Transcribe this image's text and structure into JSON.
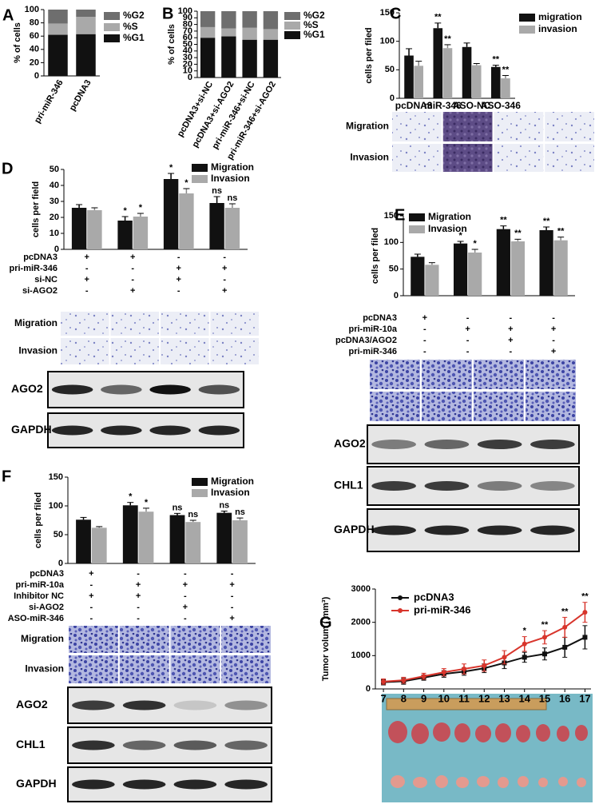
{
  "chart_data": [
    {
      "panel": "A",
      "type": "stacked_bar",
      "ylabel": "% of cells",
      "categories": [
        "pri-miR-346",
        "pcDNA3"
      ],
      "series": [
        {
          "name": "%G1",
          "color": "#111111",
          "values": [
            62,
            63
          ]
        },
        {
          "name": "%S",
          "color": "#a9a9a9",
          "values": [
            17,
            26
          ]
        },
        {
          "name": "%G2",
          "color": "#6e6e6e",
          "values": [
            21,
            11
          ]
        }
      ],
      "ylim": [
        0,
        100
      ],
      "yticks": [
        0,
        20,
        40,
        60,
        80,
        100
      ]
    },
    {
      "panel": "B",
      "type": "stacked_bar",
      "ylabel": "% of cells",
      "categories": [
        "pcDNA3+si-NC",
        "pcDNA3+si-AGO2",
        "pri-miR-346+si-NC",
        "pri-miR-346+si-AGO2"
      ],
      "series": [
        {
          "name": "%G1",
          "color": "#111111",
          "values": [
            60,
            62,
            57,
            57
          ]
        },
        {
          "name": "%S",
          "color": "#a9a9a9",
          "values": [
            16,
            12,
            18,
            16
          ]
        },
        {
          "name": "%G2",
          "color": "#6e6e6e",
          "values": [
            24,
            26,
            25,
            27
          ]
        }
      ],
      "ylim": [
        0,
        100
      ],
      "yticks": [
        0,
        10,
        20,
        30,
        40,
        50,
        60,
        70,
        80,
        90,
        100
      ]
    },
    {
      "panel": "C",
      "type": "bar",
      "ylabel": "cells per filed",
      "categories": [
        "pcDNA3",
        "miR-346",
        "ASO-NC",
        "ASO-346"
      ],
      "series": [
        {
          "name": "migration",
          "color": "#111111",
          "values": [
            75,
            123,
            90,
            55
          ],
          "errors": [
            12,
            9,
            7,
            3
          ],
          "marks": [
            null,
            "**",
            null,
            "**"
          ]
        },
        {
          "name": "invasion",
          "color": "#a9a9a9",
          "values": [
            57,
            88,
            58,
            35
          ],
          "errors": [
            8,
            6,
            3,
            5
          ],
          "marks": [
            null,
            "**",
            null,
            "**"
          ]
        }
      ],
      "ylim": [
        0,
        150
      ],
      "yticks": [
        0,
        50,
        100,
        150
      ],
      "image_rows": [
        "Migration",
        "Invasion"
      ]
    },
    {
      "panel": "D",
      "type": "bar",
      "ylabel": "cells per field",
      "series": [
        {
          "name": "Migration",
          "color": "#111111",
          "values": [
            26,
            18,
            44,
            29
          ],
          "errors": [
            2,
            2.5,
            3.5,
            4
          ],
          "marks": [
            null,
            "*",
            "*",
            "ns"
          ]
        },
        {
          "name": "Invasion",
          "color": "#a9a9a9",
          "values": [
            24.5,
            20.5,
            35,
            26
          ],
          "errors": [
            1.5,
            2,
            3,
            2.5
          ],
          "marks": [
            null,
            "*",
            "*",
            "ns"
          ]
        }
      ],
      "ylim": [
        0,
        50
      ],
      "yticks": [
        0,
        10,
        20,
        30,
        40,
        50
      ],
      "treatments": [
        {
          "name": "pcDNA3",
          "signs": [
            "+",
            "+",
            "-",
            "-"
          ]
        },
        {
          "name": "pri-miR-346",
          "signs": [
            "-",
            "-",
            "+",
            "+"
          ]
        },
        {
          "name": "si-NC",
          "signs": [
            "+",
            "-",
            "+",
            "-"
          ]
        },
        {
          "name": "si-AGO2",
          "signs": [
            "-",
            "+",
            "-",
            "+"
          ]
        }
      ],
      "image_rows": [
        "Migration",
        "Invasion"
      ],
      "blots": [
        "AGO2",
        "GAPDH"
      ]
    },
    {
      "panel": "E",
      "type": "bar",
      "ylabel": "cells per filed",
      "series": [
        {
          "name": "Migration",
          "color": "#111111",
          "values": [
            73,
            98,
            125,
            123
          ],
          "errors": [
            5,
            4,
            6,
            6
          ],
          "marks": [
            null,
            "*",
            "**",
            "**"
          ]
        },
        {
          "name": "Invasion",
          "color": "#a9a9a9",
          "values": [
            58,
            81,
            102,
            104
          ],
          "errors": [
            4,
            6,
            4,
            6
          ],
          "marks": [
            null,
            "*",
            "**",
            "**"
          ]
        }
      ],
      "ylim": [
        0,
        150
      ],
      "yticks": [
        0,
        50,
        100,
        150
      ],
      "treatments": [
        {
          "name": "pcDNA3",
          "signs": [
            "+",
            "-",
            "-",
            "-"
          ]
        },
        {
          "name": "pri-miR-10a",
          "signs": [
            "-",
            "+",
            "+",
            "+"
          ]
        },
        {
          "name": "pcDNA3/AGO2",
          "signs": [
            "-",
            "-",
            "+",
            "-"
          ]
        },
        {
          "name": "pri-miR-346",
          "signs": [
            "-",
            "-",
            "-",
            "+"
          ]
        }
      ],
      "blots": [
        "AGO2",
        "CHL1",
        "GAPDH"
      ]
    },
    {
      "panel": "F",
      "type": "bar",
      "ylabel": "cells per filed",
      "series": [
        {
          "name": "Migration",
          "color": "#111111",
          "values": [
            76,
            101,
            84,
            88
          ],
          "errors": [
            4,
            5,
            3,
            3
          ],
          "marks": [
            null,
            "*",
            "ns",
            "ns"
          ]
        },
        {
          "name": "Invasion",
          "color": "#a9a9a9",
          "values": [
            62,
            90,
            72,
            75
          ],
          "errors": [
            2,
            6,
            3,
            4
          ],
          "marks": [
            null,
            "*",
            "ns",
            "ns"
          ]
        }
      ],
      "ylim": [
        0,
        150
      ],
      "yticks": [
        0,
        50,
        100,
        150
      ],
      "treatments": [
        {
          "name": "pcDNA3",
          "signs": [
            "+",
            "-",
            "-",
            "-"
          ]
        },
        {
          "name": "pri-miR-10a",
          "signs": [
            "-",
            "+",
            "+",
            "+"
          ]
        },
        {
          "name": "Inhibitor NC",
          "signs": [
            "+",
            "+",
            "-",
            "-"
          ]
        },
        {
          "name": "si-AGO2",
          "signs": [
            "-",
            "-",
            "+",
            "-"
          ]
        },
        {
          "name": "ASO-miR-346",
          "signs": [
            "-",
            "-",
            "-",
            "+"
          ]
        }
      ],
      "image_rows": [
        "Migration",
        "Invasion"
      ],
      "blots": [
        "AGO2",
        "CHL1",
        "GAPDH"
      ]
    },
    {
      "panel": "G",
      "type": "line",
      "ylabel": "Tumor volum ( mm³)",
      "x": [
        7,
        8,
        9,
        10,
        11,
        12,
        13,
        14,
        15,
        16,
        17
      ],
      "series": [
        {
          "name": "pcDNA3",
          "color": "#111111",
          "values": [
            200,
            230,
            340,
            450,
            520,
            620,
            780,
            950,
            1050,
            1250,
            1550
          ],
          "errors": [
            80,
            90,
            80,
            100,
            110,
            130,
            170,
            150,
            180,
            300,
            350
          ]
        },
        {
          "name": "pri-miR-346",
          "color": "#d8352c",
          "values": [
            220,
            260,
            380,
            500,
            600,
            700,
            950,
            1350,
            1550,
            1850,
            2300
          ],
          "errors": [
            80,
            90,
            90,
            110,
            150,
            170,
            200,
            220,
            200,
            300,
            300
          ],
          "marks": [
            null,
            null,
            null,
            null,
            null,
            null,
            null,
            "*",
            "**",
            "**",
            "**"
          ]
        }
      ],
      "xlim": [
        6.6,
        17.3
      ],
      "xticks": [
        7,
        8,
        9,
        10,
        11,
        12,
        13,
        14,
        15,
        16,
        17
      ],
      "ylim": [
        0,
        3000
      ],
      "yticks": [
        0,
        1000,
        2000,
        3000
      ]
    }
  ]
}
